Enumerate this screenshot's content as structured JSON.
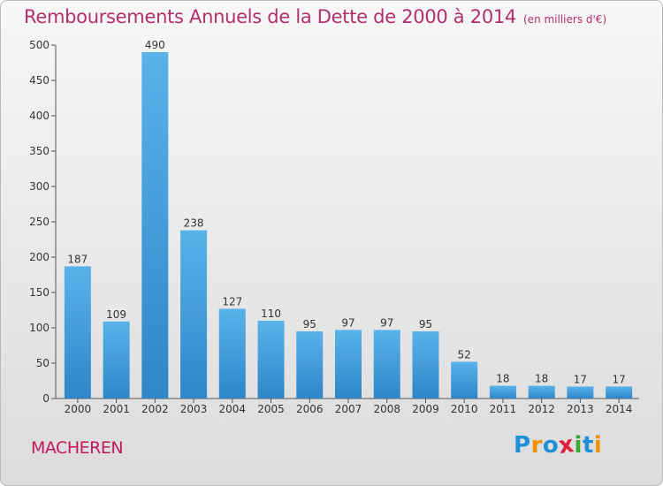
{
  "title": "Remboursements Annuels de la Dette de 2000 à 2014",
  "subtitle": "(en milliers d'€)",
  "commune": "MACHEREN",
  "logo": {
    "letters": [
      "P",
      "r",
      "o",
      "x",
      "i",
      "t",
      "i"
    ],
    "colors": [
      "#1f8fd8",
      "#f29000",
      "#1f8fd8",
      "#e0203a",
      "#3aa83a",
      "#1f8fd8",
      "#f29000"
    ]
  },
  "colors": {
    "bar_top": "#5ab2ea",
    "bar_bottom": "#2f86c8",
    "text_accent": "#b0306a"
  },
  "chart_data": {
    "type": "bar",
    "categories": [
      "2000",
      "2001",
      "2002",
      "2003",
      "2004",
      "2005",
      "2006",
      "2007",
      "2008",
      "2009",
      "2010",
      "2011",
      "2012",
      "2013",
      "2014"
    ],
    "values": [
      187,
      109,
      490,
      238,
      127,
      110,
      95,
      97,
      97,
      95,
      52,
      18,
      18,
      17,
      17
    ],
    "title": "Remboursements Annuels de la Dette de 2000 à 2014",
    "ylim": [
      0,
      500
    ],
    "yticks": [
      0,
      50,
      100,
      150,
      200,
      250,
      300,
      350,
      400,
      450,
      500
    ],
    "grid": false,
    "legend": "none"
  }
}
